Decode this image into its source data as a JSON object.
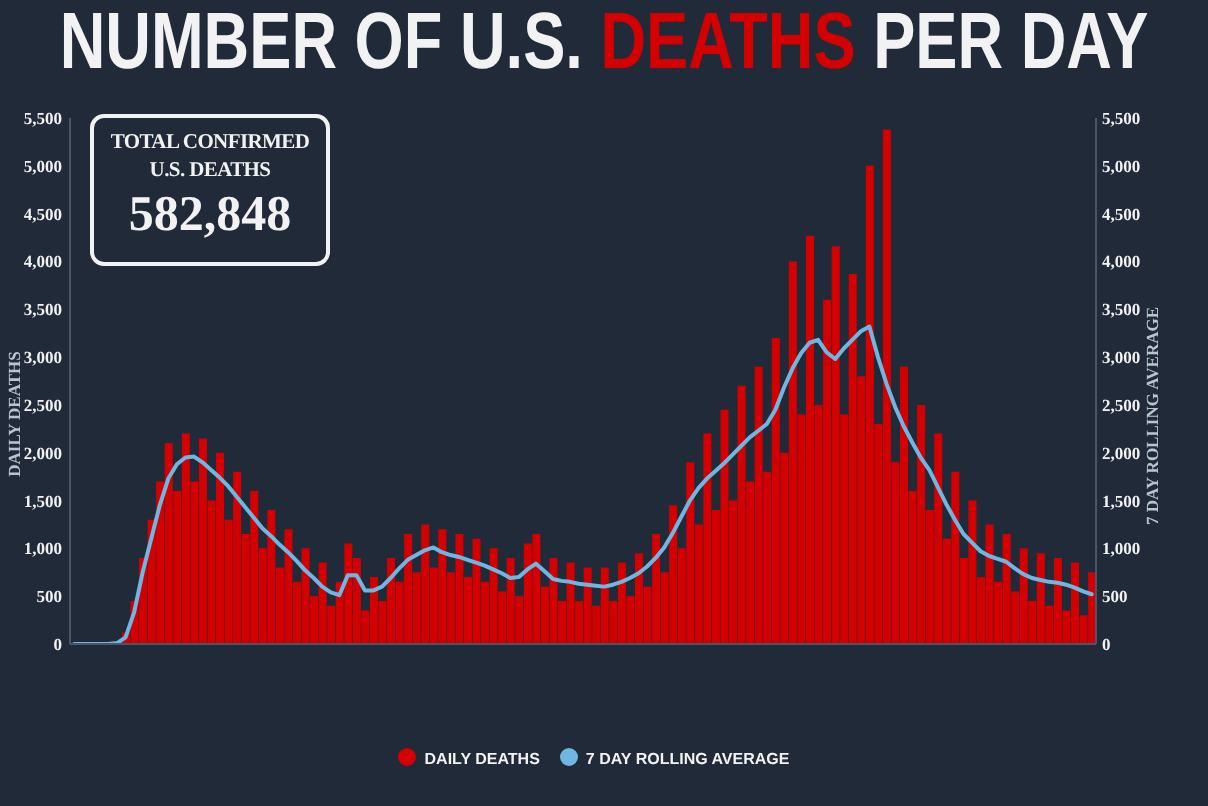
{
  "chart_data": {
    "type": "bar",
    "title": "NUMBER OF U.S. DEATHS PER DAY",
    "ylabel": "DAILY DEATHS",
    "y2label": "7 DAY ROLLING AVERAGE",
    "annotations": [
      "TOTAL CONFIRMED U.S. DEATHS",
      "582,848"
    ],
    "categories": [
      null,
      null,
      null,
      null,
      null,
      null,
      null,
      null,
      null,
      null,
      null,
      null,
      null,
      null,
      null,
      null,
      null,
      null,
      null,
      null,
      null,
      null,
      null,
      null,
      null,
      null,
      null,
      null,
      null,
      null,
      null,
      null,
      null,
      null,
      null,
      null,
      null,
      null,
      null,
      null,
      null,
      null,
      null,
      null,
      null,
      null,
      null,
      null,
      null,
      null,
      null,
      null,
      null,
      null,
      null,
      null,
      null,
      null,
      null,
      null,
      null,
      null,
      null,
      null,
      null,
      null,
      null,
      null,
      null,
      null,
      null,
      null,
      null,
      null,
      null,
      null,
      null,
      null,
      null,
      null,
      null,
      null,
      null,
      null,
      null,
      null,
      null,
      null,
      null,
      null,
      null,
      null,
      null,
      null,
      null,
      null,
      null,
      null,
      null,
      null,
      null,
      null,
      null,
      null,
      null,
      null,
      null,
      null,
      null,
      null,
      null,
      null,
      null,
      null,
      null,
      null,
      null,
      null,
      null,
      null
    ],
    "series": [
      {
        "name": "DAILY DEATHS",
        "color": "#d40000",
        "values": [
          null,
          null,
          null,
          null,
          null,
          null,
          120,
          450,
          900,
          1300,
          1700,
          2100,
          1600,
          2200,
          1700,
          2150,
          1500,
          2000,
          1300,
          1800,
          1150,
          1600,
          1000,
          1400,
          800,
          1200,
          650,
          1000,
          500,
          850,
          400,
          650,
          1050,
          900,
          350,
          700,
          450,
          900,
          650,
          1150,
          750,
          1250,
          800,
          1200,
          750,
          1150,
          700,
          1100,
          650,
          1000,
          550,
          900,
          500,
          1050,
          1150,
          600,
          900,
          450,
          850,
          450,
          800,
          400,
          800,
          450,
          850,
          500,
          950,
          600,
          1150,
          750,
          1450,
          1000,
          1900,
          1250,
          2200,
          1400,
          2450,
          1500,
          2700,
          1700,
          2900,
          1800,
          3200,
          2000,
          4000,
          2400,
          4270,
          2500,
          3600,
          4160,
          2400,
          3870,
          2800,
          5000,
          2300,
          5380,
          1900,
          2900,
          1600,
          2500,
          1400,
          2200,
          1100,
          1800,
          900,
          1500,
          700,
          1250,
          650,
          1150,
          550,
          1000,
          450,
          950,
          400,
          900,
          350,
          850,
          300,
          750
        ]
      },
      {
        "name": "7 DAY ROLLING AVERAGE",
        "type": "line",
        "axis": "y2",
        "color": "#6fb6e2",
        "values": [
          0,
          0,
          0,
          0,
          0,
          10,
          70,
          330,
          750,
          1100,
          1450,
          1730,
          1880,
          1950,
          1960,
          1900,
          1820,
          1740,
          1650,
          1540,
          1430,
          1320,
          1210,
          1130,
          1040,
          960,
          870,
          770,
          690,
          600,
          540,
          510,
          720,
          720,
          560,
          560,
          600,
          690,
          790,
          880,
          930,
          980,
          1010,
          960,
          930,
          910,
          880,
          850,
          820,
          780,
          740,
          690,
          700,
          780,
          840,
          760,
          680,
          660,
          650,
          630,
          620,
          610,
          600,
          620,
          650,
          690,
          740,
          810,
          900,
          1010,
          1160,
          1330,
          1500,
          1630,
          1730,
          1810,
          1890,
          1980,
          2070,
          2160,
          2230,
          2300,
          2450,
          2680,
          2880,
          3040,
          3150,
          3180,
          3050,
          2980,
          3090,
          3180,
          3270,
          3320,
          3000,
          2720,
          2480,
          2280,
          2110,
          1950,
          1820,
          1640,
          1460,
          1300,
          1150,
          1060,
          970,
          920,
          890,
          860,
          790,
          730,
          690,
          670,
          650,
          640,
          620,
          590,
          550,
          520
        ]
      }
    ],
    "ylim": [
      0,
      5500
    ],
    "yticks": [
      0,
      500,
      {
        "value": 1000,
        "label": "1,000"
      },
      {
        "value": 1500,
        "label": "1,500"
      },
      {
        "value": 2000,
        "label": "2,000"
      },
      {
        "value": 2500,
        "label": "2,500"
      },
      {
        "value": 3000,
        "label": "3,000"
      },
      {
        "value": 3500,
        "label": "3,500"
      },
      {
        "value": 4000,
        "label": "4,000"
      },
      {
        "value": 4500,
        "label": "4,500"
      },
      {
        "value": 5000,
        "label": "5,000"
      },
      {
        "value": 5500,
        "label": "5,500"
      }
    ],
    "y2lim": [
      0,
      5500
    ],
    "y2ticks": [
      0,
      500,
      {
        "value": 1000,
        "label": "1,000"
      },
      {
        "value": 1500,
        "label": "1,500"
      },
      {
        "value": 2000,
        "label": "2,000"
      },
      {
        "value": 2500,
        "label": "2,500"
      },
      {
        "value": 3000,
        "label": "3,000"
      },
      {
        "value": 3500,
        "label": "3,500"
      },
      {
        "value": 4000,
        "label": "4,000"
      },
      {
        "value": 4500,
        "label": "4,500"
      },
      {
        "value": 5000,
        "label": "5,000"
      },
      {
        "value": 5500,
        "label": "5,500"
      }
    ],
    "tick_labels": "y",
    "legend": "bottom"
  }
}
